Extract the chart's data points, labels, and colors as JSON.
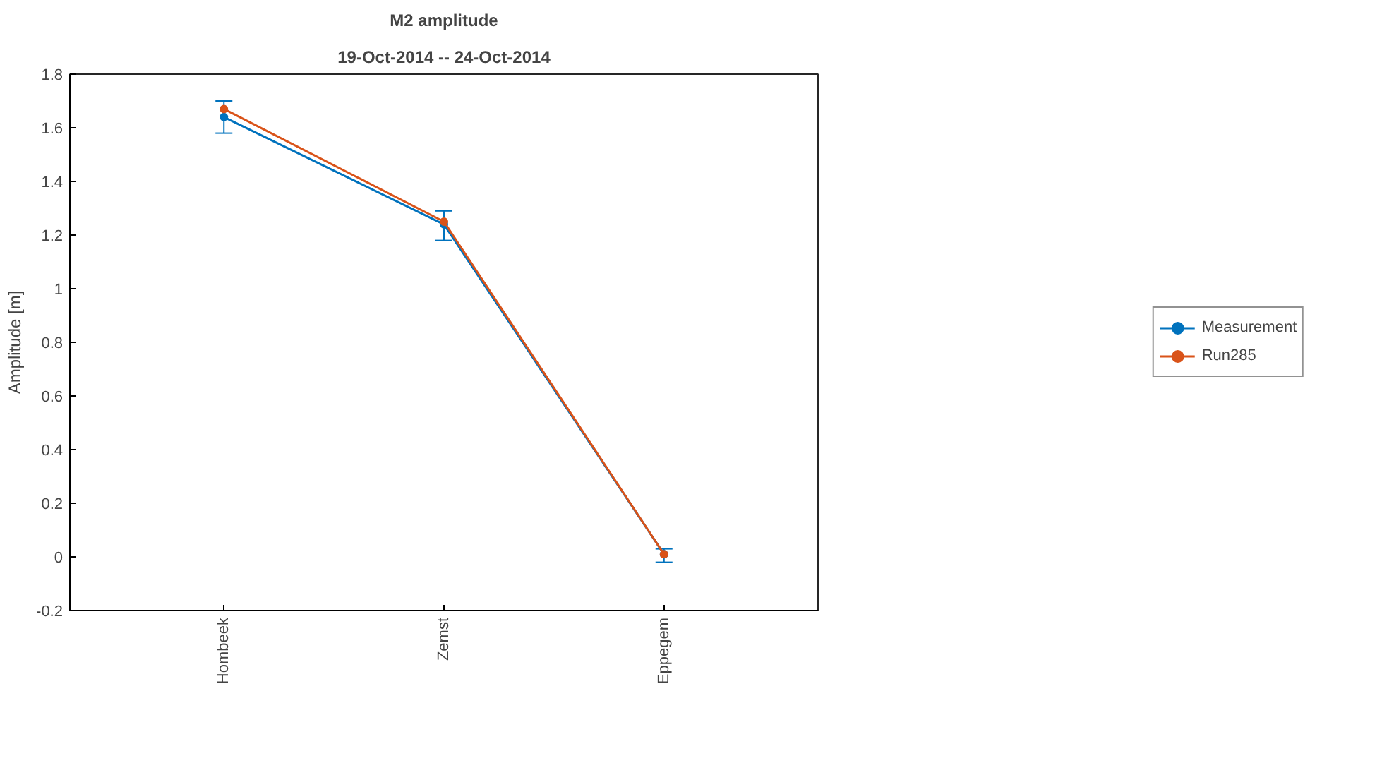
{
  "chart_data": {
    "type": "line",
    "title": "M2 amplitude",
    "subtitle": "19-Oct-2014 -- 24-Oct-2014",
    "ylabel": "Amplitude [m]",
    "categories": [
      "Hombeek",
      "Zemst",
      "Eppegem"
    ],
    "ylim": [
      -0.2,
      1.8
    ],
    "yticks": [
      -0.2,
      0,
      0.2,
      0.4,
      0.6,
      0.8,
      1,
      1.2,
      1.4,
      1.6,
      1.8
    ],
    "series": [
      {
        "name": "Measurement",
        "color": "#0072bd",
        "values": [
          1.64,
          1.24,
          0.01
        ],
        "errors": [
          [
            1.58,
            1.7
          ],
          [
            1.18,
            1.29
          ],
          [
            -0.02,
            0.03
          ]
        ]
      },
      {
        "name": "Run285",
        "color": "#d95319",
        "values": [
          1.67,
          1.25,
          0.01
        ]
      }
    ],
    "marker": "circle",
    "line_style": "solid",
    "legend": "right",
    "grid": false
  }
}
